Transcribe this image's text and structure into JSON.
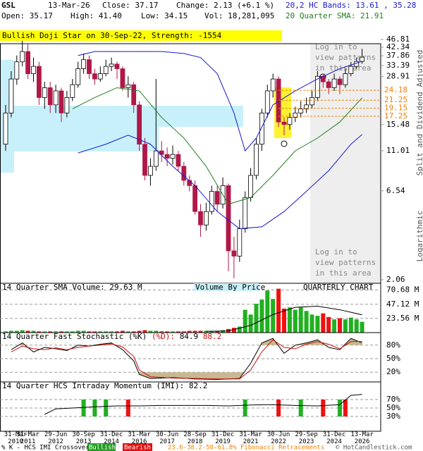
{
  "header": {
    "symbol": "GSL",
    "date": "13-Mar-26",
    "close": "Close: 37.17",
    "change": "Change: 2.13 (+6.1 %)",
    "bands": "20,2 HC Bands: 13.61 , 35.28",
    "open": "Open: 35.17",
    "high": "High: 41.40",
    "low": "Low: 34.15",
    "volume": "Vol: 18,281,095",
    "sma": "20 Quarter SMA: 21.91"
  },
  "chart_data": [
    {
      "type": "candlestick",
      "title": "Bullish Doji Star on 30-Sep-22, Strength: -1554",
      "y_label": "Split and Dividend Adjusted",
      "scale_label": "Logarithmic",
      "log_scale": true,
      "annotations": [
        "Log in to view patterns in this area",
        "Log in to view patterns in this area"
      ],
      "ylim": [
        2.06,
        46.81
      ],
      "yticks": [
        46.81,
        42.34,
        37.86,
        33.39,
        28.91,
        15.48,
        11.01,
        6.54,
        2.06
      ],
      "xlim": [
        0,
        64
      ],
      "xticks": [
        {
          "value": 0,
          "label": "31-Mar\n2010"
        },
        {
          "value": 4,
          "label": "31-Mar\n2011"
        },
        {
          "value": 9,
          "label": "29-Jun\n2012"
        },
        {
          "value": 14,
          "label": "30-Sep\n2013"
        },
        {
          "value": 19,
          "label": "31-Dec\n2014"
        },
        {
          "value": 24,
          "label": "31-Mar\n2016"
        },
        {
          "value": 29,
          "label": "30-Jun\n2017"
        },
        {
          "value": 34,
          "label": "28-Sep\n2018"
        },
        {
          "value": 39,
          "label": "31-Dec\n2019"
        },
        {
          "value": 44,
          "label": "31-Mar\n2021"
        },
        {
          "value": 49,
          "label": "30-Jun\n2022"
        },
        {
          "value": 54,
          "label": "29-Sep\n2023"
        },
        {
          "value": 59,
          "label": "31-Dec\n2024"
        },
        {
          "value": 64,
          "label": "13-Mar\n2026"
        }
      ],
      "up_color": "#ffffff",
      "down_color": "#b01848",
      "open": [
        12,
        18,
        28,
        35,
        40,
        30,
        33,
        22,
        25,
        20,
        24,
        18,
        22,
        26,
        32,
        36,
        30,
        28,
        30,
        33,
        34,
        32,
        25,
        26,
        20,
        12,
        8,
        9,
        11,
        10.5,
        10,
        10.5,
        9,
        7.5,
        7,
        5,
        4.2,
        5,
        6.5,
        5.5,
        7,
        3,
        2.8,
        4,
        6,
        8,
        12,
        18,
        24,
        28,
        16,
        15.5,
        17,
        18,
        19,
        20,
        22,
        29,
        27,
        25,
        28,
        26,
        30,
        33,
        35.17
      ],
      "high": [
        20,
        31,
        38,
        46,
        44,
        37,
        35,
        27,
        27,
        26,
        25,
        24,
        28,
        35,
        39,
        38,
        32,
        33,
        36,
        37,
        35,
        33,
        29,
        27,
        21,
        13,
        10,
        28,
        12.5,
        11.5,
        11.8,
        11,
        9.5,
        8,
        7.5,
        5.5,
        5.6,
        7,
        7,
        7.8,
        7.2,
        3.6,
        4.5,
        6.5,
        8.8,
        13,
        19,
        26,
        30,
        29,
        17,
        18,
        19.5,
        21,
        22,
        24,
        31,
        30,
        28,
        30,
        29,
        32,
        35,
        37,
        41.4
      ],
      "low": [
        11,
        17,
        26,
        33,
        28,
        27,
        20,
        19,
        18,
        18,
        16,
        17,
        21,
        25,
        30,
        28,
        26,
        27,
        29,
        31,
        28,
        24,
        22,
        18,
        11,
        7.5,
        7,
        8.5,
        9.5,
        9,
        9.2,
        8.5,
        7,
        6.5,
        4.8,
        3.6,
        3.9,
        4.8,
        5,
        5.2,
        2.3,
        2.1,
        2.6,
        3.8,
        5.7,
        7.6,
        11,
        17,
        22,
        15,
        13.5,
        14.5,
        16,
        17,
        18,
        19,
        21,
        25,
        23,
        24,
        23,
        25,
        29,
        32,
        34.15
      ],
      "close": [
        18,
        28,
        35,
        40,
        30,
        33,
        22,
        25,
        20,
        24,
        18,
        22,
        26,
        32,
        36,
        30,
        28,
        30,
        33,
        34,
        32,
        25,
        26,
        20,
        12,
        8,
        9,
        11,
        10.5,
        10,
        10.5,
        9,
        7.5,
        7,
        5,
        4.2,
        5,
        6.5,
        5.5,
        7,
        3,
        2.8,
        4,
        6,
        8,
        12,
        18,
        24,
        28,
        16,
        15.5,
        17,
        18,
        19,
        20,
        22,
        29,
        27,
        25,
        28,
        26,
        30,
        33,
        35.17,
        37.17
      ],
      "series": [
        {
          "color": "#208020",
          "x": [
            12,
            16,
            20,
            24,
            28,
            32,
            36,
            40,
            44,
            48,
            52,
            56,
            60,
            64
          ],
          "values": [
            19,
            22,
            25,
            24,
            17,
            13,
            9,
            5.5,
            6,
            8,
            11,
            13,
            16,
            21.91
          ]
        },
        {
          "color": "#1818d0",
          "x": [
            13,
            16,
            20,
            24,
            28,
            32,
            35,
            38,
            41,
            43,
            45,
            48,
            52,
            56,
            60,
            64
          ],
          "values": [
            38,
            40,
            40,
            40,
            40,
            39,
            37,
            30,
            18,
            11,
            13,
            20,
            24,
            28,
            32,
            35.28
          ]
        },
        {
          "color": "#1818d0",
          "x": [
            13,
            18,
            22,
            26,
            30,
            34,
            38,
            42,
            46,
            50,
            54,
            58,
            62,
            64
          ],
          "values": [
            10.7,
            12,
            13.5,
            12,
            9,
            7,
            5,
            4,
            4.1,
            5,
            6.5,
            8.5,
            12,
            13.61
          ]
        }
      ],
      "fib_levels": [
        24.18,
        21.25,
        19.15,
        17.25
      ],
      "fib_color": "#f08000"
    },
    {
      "type": "bar",
      "title": "14 Quarter SMA Volume: 29.63 M",
      "annotations": [
        "Volume By Price",
        "QUARTERLY CHART"
      ],
      "ylim": [
        0,
        75
      ],
      "yticks": [
        {
          "value": 70.68,
          "label": "70.68 M"
        },
        {
          "value": 47.12,
          "label": "47.12 M"
        },
        {
          "value": 23.56,
          "label": "23.56 M"
        }
      ],
      "up_color": "#20b020",
      "down_color": "#f01010",
      "values": [
        2,
        3,
        3,
        4,
        3,
        3,
        2,
        2,
        2,
        2,
        2,
        2,
        2,
        3,
        3,
        2,
        2,
        2,
        2,
        2,
        2,
        3,
        2,
        2,
        3,
        4,
        3,
        3,
        2,
        2,
        2,
        2,
        2,
        3,
        3,
        3,
        3,
        3,
        3,
        4,
        6,
        8,
        10,
        38,
        30,
        48,
        55,
        70,
        56,
        73,
        40,
        42,
        38,
        42,
        36,
        30,
        28,
        32,
        26,
        22,
        24,
        22,
        25,
        22,
        18
      ],
      "series": [
        {
          "color": "#000000",
          "x": [
            36,
            40,
            44,
            48,
            52,
            56,
            60,
            64
          ],
          "values": [
            2,
            3,
            12,
            30,
            42,
            44,
            38,
            29.63
          ]
        }
      ]
    },
    {
      "type": "line",
      "title": "14 Quarter Fast Stochastic",
      "ylim": [
        0,
        100
      ],
      "yticks": [
        {
          "value": 80,
          "label": "80%"
        },
        {
          "value": 50,
          "label": "50%"
        },
        {
          "value": 20,
          "label": "20%"
        }
      ],
      "readings": [
        84.9,
        88.2
      ],
      "shade_color": "#c8b890",
      "series": [
        {
          "name": "(%K)",
          "color": "#000000",
          "x": [
            1,
            3,
            5,
            7,
            9,
            11,
            13,
            15,
            17,
            19,
            21,
            23,
            24,
            26,
            30,
            34,
            38,
            42,
            44,
            46,
            48,
            50,
            52,
            54,
            56,
            58,
            60,
            62,
            64
          ],
          "values": [
            70,
            85,
            65,
            75,
            72,
            68,
            80,
            78,
            82,
            85,
            70,
            45,
            15,
            6,
            8,
            5,
            4,
            6,
            40,
            85,
            95,
            62,
            80,
            85,
            92,
            75,
            70,
            95,
            84.9
          ]
        },
        {
          "name": "(%D):",
          "color": "#d01010",
          "x": [
            1,
            3,
            5,
            7,
            9,
            11,
            13,
            15,
            17,
            19,
            21,
            23,
            24,
            26,
            30,
            34,
            38,
            42,
            44,
            46,
            48,
            50,
            52,
            54,
            56,
            58,
            60,
            62,
            64
          ],
          "values": [
            65,
            78,
            72,
            70,
            74,
            70,
            75,
            78,
            80,
            83,
            76,
            55,
            25,
            10,
            7,
            6,
            5,
            5,
            25,
            65,
            92,
            75,
            72,
            82,
            88,
            82,
            72,
            88,
            88.2
          ]
        }
      ]
    },
    {
      "type": "line",
      "title": "14 Quarter HCS Intraday Momentum (IMI): 82.2",
      "ylim": [
        0,
        100
      ],
      "yticks": [
        {
          "value": 70,
          "label": "70%"
        },
        {
          "value": 50,
          "label": "50%"
        },
        {
          "value": 30,
          "label": "30%"
        }
      ],
      "series": [
        {
          "color": "#000000",
          "x": [
            7,
            9,
            12,
            16,
            20,
            24,
            28,
            32,
            36,
            40,
            44,
            48,
            52,
            56,
            60,
            62,
            64
          ],
          "values": [
            35,
            48,
            50,
            53,
            55,
            55,
            56,
            56,
            56,
            55,
            57,
            58,
            56,
            55,
            58,
            80,
            82.2
          ]
        }
      ],
      "bullish_x": [
        14,
        16,
        18,
        43,
        53,
        60
      ],
      "bearish_x": [
        22,
        49,
        57,
        61
      ],
      "bullish_color": "#20b020",
      "bearish_color": "#f01010"
    }
  ],
  "footer": {
    "legend": "% K - HCS IMI Crossover,",
    "bullish": "Bullish",
    "bearish": "Bearish",
    "fibonacci": "23.6-38.2-50-61.8% Fibonacci Retracements",
    "copyright": "© HotCandlestick.com"
  }
}
